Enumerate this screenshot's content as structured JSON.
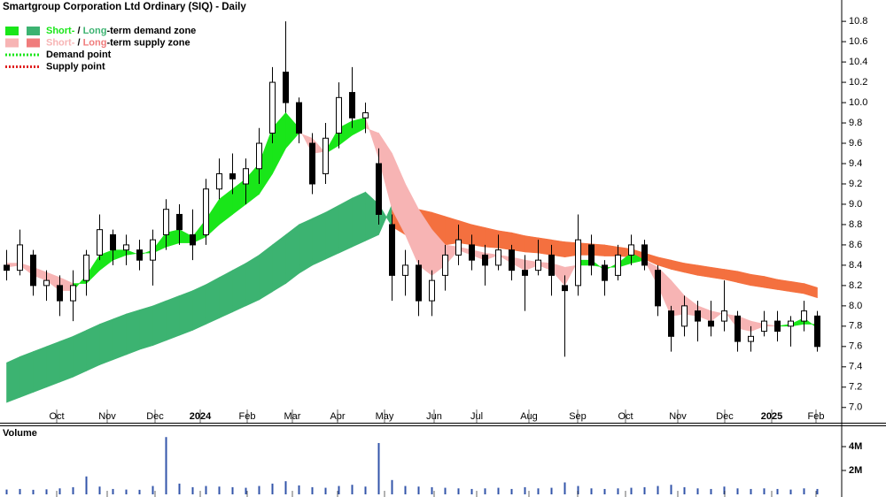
{
  "chart_data": [
    {
      "type": "candlestick",
      "title": "Smartgroup Corporation Ltd Ordinary (SIQ) - Daily",
      "legend": [
        {
          "parts": [
            "Short-",
            " / ",
            "Long",
            "-term demand zone"
          ],
          "colors": [
            "#19e619",
            "#3cb371"
          ]
        },
        {
          "parts": [
            "Short-",
            " / ",
            "Long",
            "-term supply zone"
          ],
          "colors": [
            "#f7b4b4",
            "#f07c7c"
          ]
        },
        {
          "label": "Demand point",
          "color": "#19e619"
        },
        {
          "label": "Supply point",
          "color": "#e02020"
        }
      ],
      "x": [
        0.75,
        2.25,
        3.75,
        5.25,
        6.75,
        8.25,
        9.75,
        11.25,
        12.75,
        14.25,
        15.75,
        17.25,
        18.75,
        20.25,
        21.75,
        23.25,
        24.75,
        26.25,
        27.75,
        29.25,
        30.75,
        32.25,
        33.75,
        35.25,
        36.75,
        38.25,
        39.75,
        41.25,
        42.75,
        44.25,
        45.75,
        47.25,
        48.75,
        50.25,
        51.75,
        53.25,
        54.75,
        56.25,
        57.75,
        59.25,
        60.75,
        62.25,
        63.75,
        65.25,
        66.75,
        68.25,
        69.75,
        71.25,
        72.75,
        74.25,
        75.75,
        77.25,
        78.75,
        80.25,
        81.75,
        83.25,
        84.75,
        86.25,
        87.75,
        89.25,
        90.75,
        92.25
      ],
      "open": [
        8.4,
        8.35,
        8.5,
        8.2,
        8.2,
        8.05,
        8.25,
        8.5,
        8.7,
        8.55,
        8.55,
        8.45,
        8.7,
        8.9,
        8.7,
        8.7,
        9.15,
        9.3,
        9.2,
        9.35,
        9.7,
        10.3,
        10.0,
        9.6,
        9.3,
        9.7,
        10.1,
        9.85,
        9.4,
        8.8,
        8.3,
        8.4,
        8.05,
        8.3,
        8.5,
        8.6,
        8.5,
        8.4,
        8.55,
        8.35,
        8.35,
        8.5,
        8.2,
        8.2,
        8.6,
        8.4,
        8.3,
        8.5,
        8.6,
        8.35,
        7.95,
        7.8,
        7.95,
        7.85,
        7.85,
        7.9,
        7.65,
        7.75,
        7.85,
        7.8,
        7.85,
        7.9
      ],
      "high": [
        8.55,
        8.75,
        8.55,
        8.35,
        8.3,
        8.35,
        8.55,
        8.9,
        8.75,
        8.7,
        8.65,
        8.75,
        9.05,
        9.0,
        8.95,
        9.25,
        9.45,
        9.5,
        9.45,
        9.75,
        10.35,
        10.8,
        10.05,
        9.7,
        9.8,
        10.2,
        10.35,
        10.0,
        9.55,
        8.9,
        8.55,
        8.45,
        8.35,
        8.6,
        8.8,
        8.7,
        8.6,
        8.7,
        8.6,
        8.5,
        8.65,
        8.6,
        8.3,
        8.9,
        8.7,
        8.45,
        8.6,
        8.7,
        8.65,
        8.4,
        8.0,
        8.1,
        8.05,
        8.05,
        8.25,
        7.95,
        7.8,
        7.95,
        7.95,
        7.9,
        8.05,
        7.95
      ],
      "low": [
        8.25,
        8.3,
        8.1,
        8.05,
        7.9,
        7.85,
        8.1,
        8.45,
        8.4,
        8.4,
        8.35,
        8.2,
        8.55,
        8.6,
        8.45,
        8.6,
        9.05,
        9.1,
        9.0,
        9.2,
        9.6,
        9.9,
        9.6,
        9.1,
        9.2,
        9.55,
        9.75,
        9.7,
        8.8,
        8.05,
        8.1,
        7.9,
        7.9,
        8.15,
        8.4,
        8.35,
        8.2,
        8.35,
        8.25,
        7.95,
        8.3,
        8.1,
        7.5,
        8.1,
        8.3,
        8.1,
        8.25,
        8.4,
        8.35,
        7.9,
        7.55,
        7.7,
        7.65,
        7.7,
        7.75,
        7.55,
        7.55,
        7.7,
        7.65,
        7.6,
        7.75,
        7.55
      ],
      "close": [
        8.35,
        8.6,
        8.2,
        8.25,
        8.05,
        8.2,
        8.5,
        8.75,
        8.55,
        8.6,
        8.45,
        8.65,
        8.95,
        8.75,
        8.6,
        9.15,
        9.3,
        9.25,
        9.35,
        9.6,
        10.2,
        10.0,
        9.7,
        9.2,
        9.65,
        10.05,
        9.85,
        9.9,
        8.9,
        8.3,
        8.4,
        8.05,
        8.25,
        8.5,
        8.65,
        8.45,
        8.4,
        8.55,
        8.35,
        8.3,
        8.45,
        8.3,
        8.15,
        8.65,
        8.4,
        8.25,
        8.5,
        8.6,
        8.4,
        8.0,
        7.7,
        8.0,
        7.85,
        7.8,
        7.95,
        7.65,
        7.7,
        7.85,
        7.75,
        7.85,
        7.95,
        7.6
      ],
      "short_zone": {
        "demand_color": "#19e619",
        "supply_color": "#f7b4b4",
        "fast": [
          8.38,
          8.4,
          8.3,
          8.25,
          8.15,
          8.15,
          8.3,
          8.5,
          8.55,
          8.55,
          8.5,
          8.55,
          8.72,
          8.75,
          8.68,
          8.85,
          9.05,
          9.15,
          9.25,
          9.4,
          9.75,
          9.9,
          9.75,
          9.5,
          9.52,
          9.75,
          9.82,
          9.85,
          9.45,
          8.95,
          8.7,
          8.4,
          8.3,
          8.4,
          8.55,
          8.5,
          8.45,
          8.5,
          8.42,
          8.35,
          8.4,
          8.35,
          8.2,
          8.45,
          8.45,
          8.35,
          8.42,
          8.52,
          8.45,
          8.2,
          7.9,
          7.92,
          7.9,
          7.85,
          7.95,
          7.78,
          7.75,
          7.8,
          7.8,
          7.82,
          7.88,
          7.78
        ],
        "slow": [
          8.42,
          8.42,
          8.38,
          8.33,
          8.28,
          8.22,
          8.22,
          8.35,
          8.45,
          8.5,
          8.52,
          8.52,
          8.58,
          8.62,
          8.62,
          8.68,
          8.8,
          8.9,
          9.0,
          9.1,
          9.3,
          9.55,
          9.7,
          9.65,
          9.5,
          9.58,
          9.68,
          9.75,
          9.7,
          9.5,
          9.2,
          8.95,
          8.75,
          8.6,
          8.58,
          8.55,
          8.52,
          8.5,
          8.48,
          8.45,
          8.43,
          8.42,
          8.38,
          8.4,
          8.4,
          8.38,
          8.38,
          8.42,
          8.45,
          8.38,
          8.25,
          8.1,
          8.0,
          7.95,
          7.92,
          7.9,
          7.85,
          7.82,
          7.8,
          7.8,
          7.82,
          7.82
        ]
      },
      "long_zone": {
        "demand_color": "#3cb371",
        "supply_color": "#f4703f",
        "fast": [
          7.44,
          7.5,
          7.55,
          7.6,
          7.65,
          7.7,
          7.76,
          7.82,
          7.87,
          7.92,
          7.96,
          8.0,
          8.05,
          8.1,
          8.15,
          8.21,
          8.28,
          8.35,
          8.42,
          8.5,
          8.6,
          8.7,
          8.8,
          8.86,
          8.92,
          8.99,
          9.06,
          9.12,
          9.0,
          8.78,
          8.7,
          8.64,
          8.6,
          8.6,
          8.62,
          8.6,
          8.58,
          8.57,
          8.55,
          8.53,
          8.52,
          8.5,
          8.48,
          8.5,
          8.5,
          8.49,
          8.49,
          8.48,
          8.46,
          8.4,
          8.36,
          8.33,
          8.3,
          8.28,
          8.26,
          8.23,
          8.2,
          8.18,
          8.16,
          8.14,
          8.12,
          8.08
        ],
        "slow": [
          7.05,
          7.1,
          7.15,
          7.2,
          7.25,
          7.3,
          7.36,
          7.42,
          7.47,
          7.52,
          7.57,
          7.61,
          7.66,
          7.71,
          7.76,
          7.82,
          7.88,
          7.94,
          8.0,
          8.06,
          8.14,
          8.22,
          8.32,
          8.4,
          8.46,
          8.52,
          8.58,
          8.64,
          8.7,
          9.0,
          8.98,
          8.95,
          8.92,
          8.88,
          8.84,
          8.8,
          8.77,
          8.74,
          8.72,
          8.69,
          8.67,
          8.65,
          8.63,
          8.62,
          8.61,
          8.6,
          8.58,
          8.56,
          8.52,
          8.48,
          8.45,
          8.42,
          8.4,
          8.38,
          8.36,
          8.34,
          8.31,
          8.29,
          8.26,
          8.24,
          8.22,
          8.18
        ]
      },
      "xlim": [
        0,
        95
      ],
      "xticks": [
        {
          "value": 6.4,
          "label": "Oct"
        },
        {
          "value": 12.1,
          "label": "Nov"
        },
        {
          "value": 17.5,
          "label": "Dec"
        },
        {
          "value": 22.6,
          "label": "2024",
          "bold": true
        },
        {
          "value": 27.9,
          "label": "Feb"
        },
        {
          "value": 33.0,
          "label": "Mar"
        },
        {
          "value": 38.1,
          "label": "Apr"
        },
        {
          "value": 43.4,
          "label": "May"
        },
        {
          "value": 49.0,
          "label": "Jun"
        },
        {
          "value": 53.8,
          "label": "Jul"
        },
        {
          "value": 59.7,
          "label": "Aug"
        },
        {
          "value": 65.2,
          "label": "Sep"
        },
        {
          "value": 70.6,
          "label": "Oct"
        },
        {
          "value": 76.5,
          "label": "Nov"
        },
        {
          "value": 81.8,
          "label": "Dec"
        },
        {
          "value": 87.1,
          "label": "2025",
          "bold": true
        },
        {
          "value": 92.1,
          "label": "Feb"
        }
      ],
      "ylim": [
        6.85,
        11.01
      ],
      "yticks": [
        {
          "value": 7.0,
          "label": "7.0"
        },
        7.2,
        7.4,
        7.6,
        7.8,
        {
          "value": 8.0,
          "label": "8.0"
        },
        8.2,
        8.4,
        8.6,
        8.8,
        {
          "value": 9.0,
          "label": "9.0"
        },
        9.2,
        9.4,
        9.6,
        9.8,
        {
          "value": 10.0,
          "label": "10.0"
        },
        10.2,
        10.4,
        10.6,
        10.8
      ],
      "grid": false
    },
    {
      "type": "bar",
      "title": "Volume",
      "color": "#3355aa",
      "title_color": "#551a8b",
      "x": [
        0.75,
        2.25,
        3.75,
        5.25,
        6.75,
        8.25,
        9.75,
        11.25,
        12.75,
        14.25,
        15.75,
        17.25,
        18.75,
        20.25,
        21.75,
        23.25,
        24.75,
        26.25,
        27.75,
        29.25,
        30.75,
        32.25,
        33.75,
        35.25,
        36.75,
        38.25,
        39.75,
        41.25,
        42.75,
        44.25,
        45.75,
        47.25,
        48.75,
        50.25,
        51.75,
        53.25,
        54.75,
        56.25,
        57.75,
        59.25,
        60.75,
        62.25,
        63.75,
        65.25,
        66.75,
        68.25,
        69.75,
        71.25,
        72.75,
        74.25,
        75.75,
        77.25,
        78.75,
        80.25,
        81.75,
        83.25,
        84.75,
        86.25,
        87.75,
        89.25,
        90.75,
        92.25
      ],
      "values": [
        400000,
        450000,
        380000,
        420000,
        500000,
        600000,
        1500000,
        650000,
        450000,
        400000,
        380000,
        700000,
        4800000,
        900000,
        600000,
        700000,
        650000,
        600000,
        550000,
        700000,
        900000,
        1100000,
        750000,
        600000,
        550000,
        700000,
        800000,
        650000,
        4300000,
        1200000,
        700000,
        650000,
        600000,
        550000,
        500000,
        450000,
        500000,
        550000,
        450000,
        600000,
        500000,
        550000,
        1000000,
        700000,
        500000,
        450000,
        500000,
        550000,
        600000,
        700000,
        800000,
        600000,
        500000,
        450000,
        650000,
        500000,
        450000,
        500000,
        450000,
        400000,
        500000,
        450000
      ],
      "xlim": [
        0,
        95
      ],
      "ylim": [
        0,
        5780000
      ],
      "yticks": [
        {
          "value": 2000000,
          "label": "2M"
        },
        {
          "value": 4000000,
          "label": "4M"
        }
      ]
    }
  ]
}
